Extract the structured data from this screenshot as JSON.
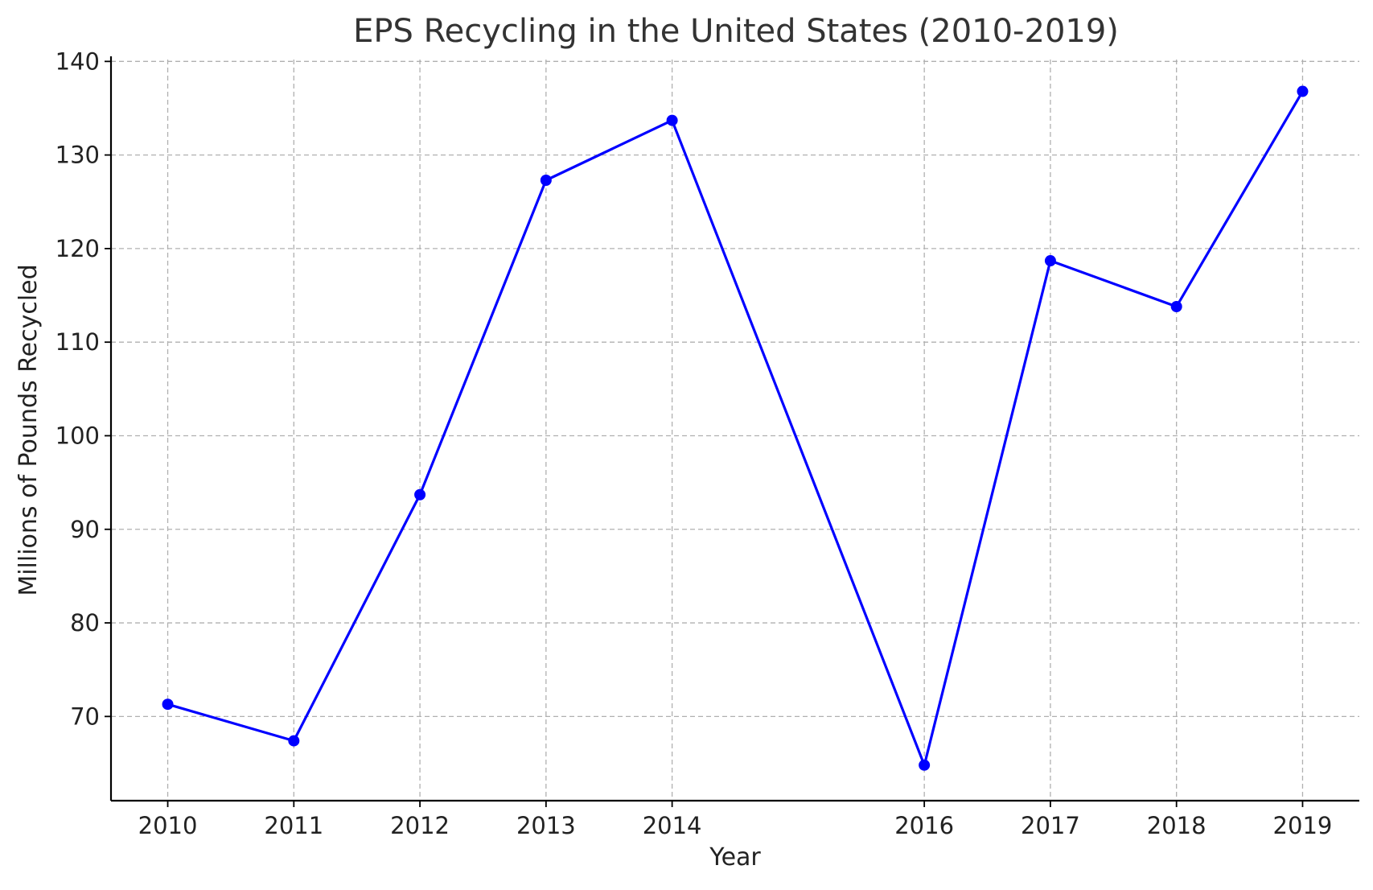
{
  "chart_data": {
    "type": "line",
    "title": "EPS Recycling in the United States (2010-2019)",
    "xlabel": "Year",
    "ylabel": "Millions of Pounds Recycled",
    "x": [
      2010,
      2011,
      2012,
      2013,
      2014,
      2016,
      2017,
      2018,
      2019
    ],
    "x_ticks": [
      "2010",
      "2011",
      "2012",
      "2013",
      "2014",
      "2016",
      "2017",
      "2018",
      "2019"
    ],
    "y_ticks": [
      70,
      80,
      90,
      100,
      110,
      120,
      130,
      140
    ],
    "xlim": [
      2009.55,
      2019.45
    ],
    "ylim": [
      61,
      140.2
    ],
    "grid": true,
    "series": [
      {
        "values": [
          71.3,
          67.4,
          93.7,
          127.3,
          133.7,
          64.8,
          118.7,
          113.8,
          136.8
        ],
        "color": "#0000ff",
        "marker": "circle"
      }
    ]
  }
}
